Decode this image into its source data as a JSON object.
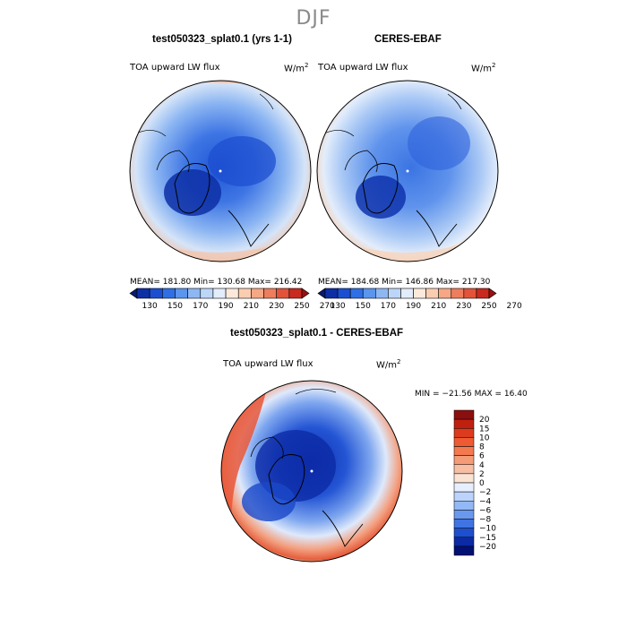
{
  "season": "DJF",
  "top_left": {
    "title": "test050323_splat0.1 (yrs 1-1)",
    "field": "TOA upward LW flux",
    "units": "W/m",
    "units_exp": "2",
    "stats": "MEAN= 181.80   Min= 130.68   Max= 216.42"
  },
  "top_right": {
    "title": "CERES-EBAF",
    "field": "TOA upward LW flux",
    "units": "W/m",
    "units_exp": "2",
    "stats": "MEAN= 184.68   Min= 146.86   Max= 217.30"
  },
  "top_colorbar": {
    "labels": [
      "130",
      "150",
      "170",
      "190",
      "210",
      "230",
      "250",
      "270"
    ],
    "colors": [
      "#061a6e",
      "#0d2fa6",
      "#1b4fd2",
      "#2f6fe6",
      "#5a95ee",
      "#8db7f3",
      "#bcd6f8",
      "#e2ecfb",
      "#fce9dc",
      "#fbcdb0",
      "#f6a784",
      "#ee7d5d",
      "#e2533a",
      "#c92a1f",
      "#99120f"
    ]
  },
  "bottom": {
    "title": "test050323_splat0.1 - CERES-EBAF",
    "field": "TOA upward LW flux",
    "units": "W/m",
    "units_exp": "2",
    "stats": "MIN = −21.56  MAX =  16.40"
  },
  "diff_colorbar": {
    "labels": [
      "20",
      "15",
      "10",
      "8",
      "6",
      "4",
      "2",
      "0",
      "−2",
      "−4",
      "−6",
      "−8",
      "−10",
      "−15",
      "−20"
    ],
    "colors": [
      "#8b0f0f",
      "#c0200f",
      "#dc3b1e",
      "#ee5a32",
      "#f3794f",
      "#f39c77",
      "#f6bea4",
      "#fbe3d4",
      "#e6efff",
      "#bcd4fb",
      "#93b8f5",
      "#6a98ee",
      "#3f74e2",
      "#1e4fcf",
      "#0b2aa3",
      "#020f73"
    ]
  }
}
